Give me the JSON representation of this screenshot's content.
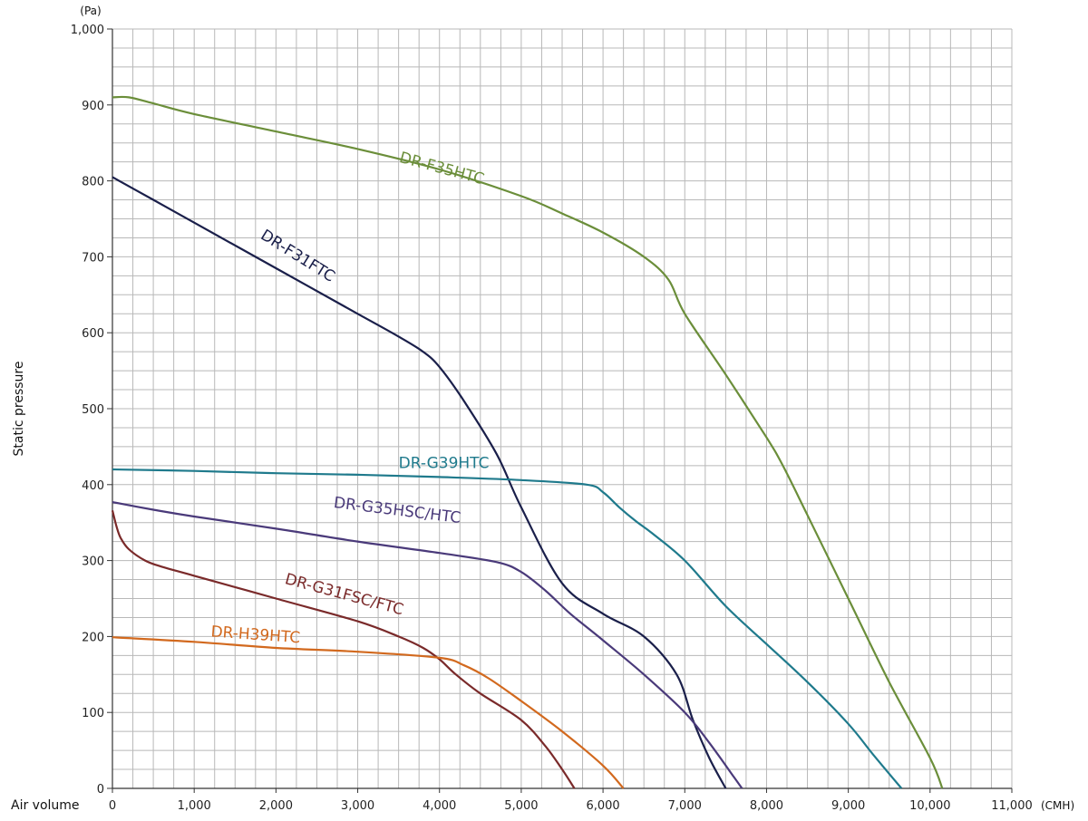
{
  "chart_data": {
    "type": "line",
    "title": "",
    "xlabel": "Air volume",
    "ylabel": "Static pressure",
    "x_unit": "(CMH)",
    "y_unit": "(Pa)",
    "xlim": [
      0,
      11000
    ],
    "ylim": [
      0,
      1000
    ],
    "grid": true,
    "legend": "inline labels",
    "x_ticks": [
      "0",
      "1,000",
      "2,000",
      "3,000",
      "4,000",
      "5,000",
      "6,000",
      "7,000",
      "8,000",
      "9,000",
      "10,000",
      "11,000"
    ],
    "y_ticks": [
      "0",
      "100",
      "200",
      "300",
      "400",
      "500",
      "600",
      "700",
      "800",
      "900",
      "1,000"
    ],
    "series": [
      {
        "name": "DR-F35HTC",
        "color": "#6b8e3a",
        "label_at": [
          3500,
          825
        ],
        "label_angle": 15,
        "x": [
          0,
          200,
          500,
          1000,
          2000,
          3000,
          4000,
          5000,
          5500,
          6000,
          6500,
          6800,
          7000,
          7500,
          8000,
          8200,
          8500,
          9000,
          9500,
          10000,
          10150
        ],
        "y": [
          910,
          910,
          902,
          888,
          865,
          842,
          815,
          780,
          757,
          732,
          700,
          670,
          625,
          545,
          462,
          425,
          360,
          250,
          140,
          40,
          0
        ]
      },
      {
        "name": "DR-F31FTC",
        "color": "#1a1f4a",
        "label_at": [
          1800,
          725
        ],
        "label_angle": 32,
        "x": [
          0,
          500,
          1000,
          2000,
          3000,
          3500,
          3800,
          4000,
          4300,
          4700,
          5000,
          5500,
          6000,
          6500,
          6900,
          7100,
          7300,
          7500
        ],
        "y": [
          805,
          775,
          745,
          685,
          625,
          595,
          575,
          555,
          510,
          440,
          370,
          270,
          230,
          200,
          150,
          90,
          40,
          0
        ]
      },
      {
        "name": "DR-G39HTC",
        "color": "#1f7a8c",
        "label_at": [
          3500,
          422
        ],
        "label_angle": 0,
        "x": [
          0,
          1000,
          2000,
          3000,
          4000,
          5000,
          5800,
          6000,
          6200,
          6400,
          6600,
          7000,
          7500,
          8000,
          8500,
          9000,
          9300,
          9650
        ],
        "y": [
          420,
          418,
          415,
          413,
          410,
          406,
          400,
          390,
          370,
          352,
          336,
          300,
          240,
          190,
          140,
          85,
          45,
          0
        ]
      },
      {
        "name": "DR-G35HSC/HTC",
        "color": "#4a3a7a",
        "label_at": [
          2700,
          370
        ],
        "label_angle": 7,
        "x": [
          0,
          500,
          1000,
          2000,
          3000,
          4000,
          4700,
          5000,
          5300,
          5600,
          6000,
          6500,
          7000,
          7300,
          7600,
          7700
        ],
        "y": [
          377,
          367,
          358,
          342,
          325,
          310,
          298,
          285,
          260,
          230,
          195,
          150,
          100,
          60,
          15,
          0
        ]
      },
      {
        "name": "DR-G31FSC/FTC",
        "color": "#7a2a2a",
        "label_at": [
          2100,
          270
        ],
        "label_angle": 15,
        "x": [
          0,
          50,
          100,
          200,
          400,
          600,
          1000,
          2000,
          3000,
          3500,
          3800,
          4000,
          4200,
          4500,
          5000,
          5300,
          5500,
          5650
        ],
        "y": [
          366,
          345,
          330,
          315,
          300,
          292,
          280,
          250,
          220,
          200,
          185,
          170,
          150,
          125,
          90,
          55,
          25,
          0
        ]
      },
      {
        "name": "DR-H39HTC",
        "color": "#d2691e",
        "label_at": [
          1200,
          200
        ],
        "label_angle": 4,
        "x": [
          0,
          1000,
          2000,
          3000,
          4000,
          4300,
          4600,
          5000,
          5500,
          6000,
          6250
        ],
        "y": [
          199,
          193,
          185,
          180,
          172,
          162,
          145,
          115,
          75,
          30,
          0
        ]
      }
    ]
  }
}
